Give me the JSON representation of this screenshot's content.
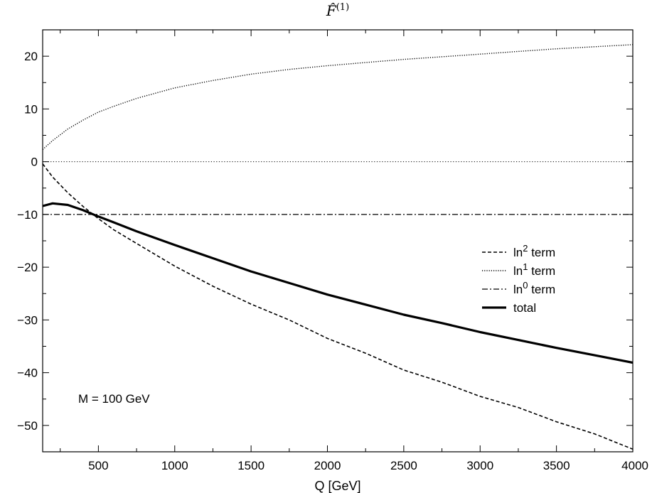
{
  "chart_data": {
    "type": "line",
    "title_main": "F̂",
    "title_sup": "(1)",
    "xlabel": "Q [GeV]",
    "ylabel": "",
    "xlim": [
      135,
      4000
    ],
    "ylim": [
      -55,
      25
    ],
    "xticks": [
      500,
      1000,
      1500,
      2000,
      2500,
      3000,
      3500,
      4000
    ],
    "yticks": [
      -50,
      -40,
      -30,
      -20,
      -10,
      0,
      10,
      20
    ],
    "annotation": "M = 100 GeV",
    "legend_position": "center-right",
    "grid": false,
    "zero_line": true,
    "series": [
      {
        "name": "ln",
        "name_sup": "2",
        "name_suffix": " term",
        "style": "dashed",
        "x": [
          135,
          200,
          300,
          400,
          500,
          600,
          750,
          1000,
          1250,
          1500,
          1750,
          2000,
          2250,
          2500,
          2750,
          3000,
          3250,
          3500,
          3750,
          4000
        ],
        "y": [
          -0.4,
          -2.9,
          -5.9,
          -8.5,
          -10.8,
          -12.9,
          -15.5,
          -19.8,
          -23.6,
          -27.0,
          -30.0,
          -33.5,
          -36.3,
          -39.5,
          -41.8,
          -44.5,
          -46.6,
          -49.3,
          -51.6,
          -54.5
        ]
      },
      {
        "name": "ln",
        "name_sup": "1",
        "name_suffix": " term",
        "style": "dotted",
        "x": [
          135,
          200,
          300,
          400,
          500,
          600,
          750,
          1000,
          1250,
          1500,
          1750,
          2000,
          2250,
          2500,
          2750,
          3000,
          3250,
          3500,
          3750,
          4000
        ],
        "y": [
          2.3,
          4.0,
          6.2,
          7.9,
          9.4,
          10.5,
          12.0,
          14.0,
          15.4,
          16.6,
          17.5,
          18.2,
          18.8,
          19.4,
          19.9,
          20.4,
          20.9,
          21.4,
          21.8,
          22.2
        ]
      },
      {
        "name": "ln",
        "name_sup": "0",
        "name_suffix": " term",
        "style": "dashdot",
        "x": [
          135,
          4000
        ],
        "y": [
          -10.0,
          -10.0
        ]
      },
      {
        "name": "total",
        "name_sup": "",
        "name_suffix": "",
        "style": "solid-thick",
        "x": [
          135,
          200,
          300,
          400,
          500,
          600,
          750,
          1000,
          1250,
          1500,
          1750,
          2000,
          2250,
          2500,
          2750,
          3000,
          3250,
          3500,
          3750,
          4000
        ],
        "y": [
          -8.4,
          -7.9,
          -8.2,
          -9.2,
          -10.4,
          -11.5,
          -13.2,
          -15.8,
          -18.3,
          -20.8,
          -23.0,
          -25.2,
          -27.1,
          -29.0,
          -30.6,
          -32.3,
          -33.8,
          -35.3,
          -36.7,
          -38.1
        ]
      }
    ]
  }
}
